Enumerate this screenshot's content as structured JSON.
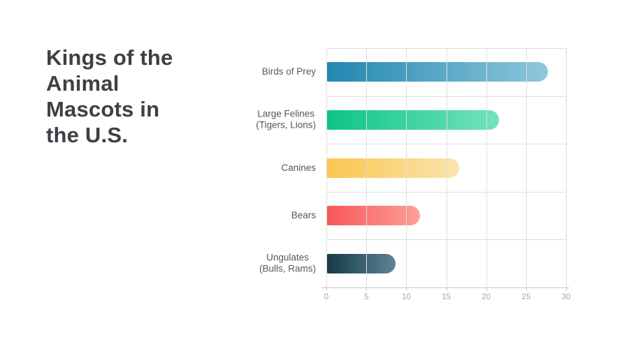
{
  "page": {
    "background_color": "#FFFFFF"
  },
  "title": {
    "text": "Kings of the\nAnimal\nMascots in\nthe U.S.",
    "color": "#3D4044"
  },
  "chart_data": {
    "type": "bar",
    "orientation": "horizontal",
    "title": "Kings of the Animal Mascots in the U.S.",
    "categories": [
      "Birds of Prey",
      "Large Felines (Tigers, Lions)",
      "Canines",
      "Bears",
      "Ungulates (Bulls, Rams)"
    ],
    "categories_display": [
      "Birds of Prey",
      "Large Felines\n(Tigers, Lions)",
      "Canines",
      "Bears",
      "Ungulates\n(Bulls, Rams)"
    ],
    "values": [
      27.7,
      21.6,
      16.6,
      11.7,
      8.7
    ],
    "xlabel": "",
    "ylabel": "",
    "xlim": [
      0,
      30
    ],
    "x_ticks": [
      0,
      5,
      10,
      15,
      20,
      25,
      30
    ],
    "grid": true,
    "legend": false,
    "bar_gradients": [
      [
        "#2187B0",
        "#8FC7DC"
      ],
      [
        "#0CC487",
        "#74E3BD"
      ],
      [
        "#F9C750",
        "#FBE4AD"
      ],
      [
        "#F85757",
        "#FC9F99"
      ],
      [
        "#143947",
        "#5F8494"
      ]
    ],
    "grid_color": "#DEDEDF",
    "axis_color": "#C2C5C7",
    "tick_label_color": "#A5A8AA",
    "category_label_color": "#54575B"
  }
}
